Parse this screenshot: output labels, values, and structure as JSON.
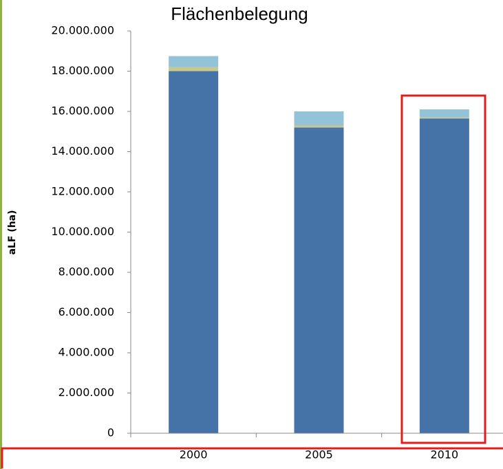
{
  "chart_data": {
    "type": "stacked_bar",
    "title": "Flächenbelegung",
    "y_label": "aLF (ha)",
    "categories": [
      "2000",
      "2005",
      "2010"
    ],
    "series": [
      {
        "color": "#4572a7",
        "values": [
          18000000,
          15200000,
          15650000
        ]
      },
      {
        "color": "#c8c88c",
        "values": [
          200000,
          100000,
          50000
        ]
      },
      {
        "color": "#93c3d6",
        "values": [
          550000,
          700000,
          400000
        ]
      }
    ],
    "ylim": [
      0,
      20000000
    ],
    "yticks": [
      0,
      {
        "value": 2000000,
        "label": "2.000.000"
      },
      {
        "value": 4000000,
        "label": "4.000.000"
      },
      {
        "value": 6000000,
        "label": "6.000.000"
      },
      {
        "value": 8000000,
        "label": "8.000.000"
      },
      {
        "value": 10000000,
        "label": "10.000.000"
      },
      {
        "value": 12000000,
        "label": "12.000.000"
      },
      {
        "value": 14000000,
        "label": "14.000.000"
      },
      {
        "value": 16000000,
        "label": "16.000.000"
      },
      {
        "value": 18000000,
        "label": "18.000.000"
      },
      {
        "value": 20000000,
        "label": "20.000.000"
      }
    ]
  }
}
